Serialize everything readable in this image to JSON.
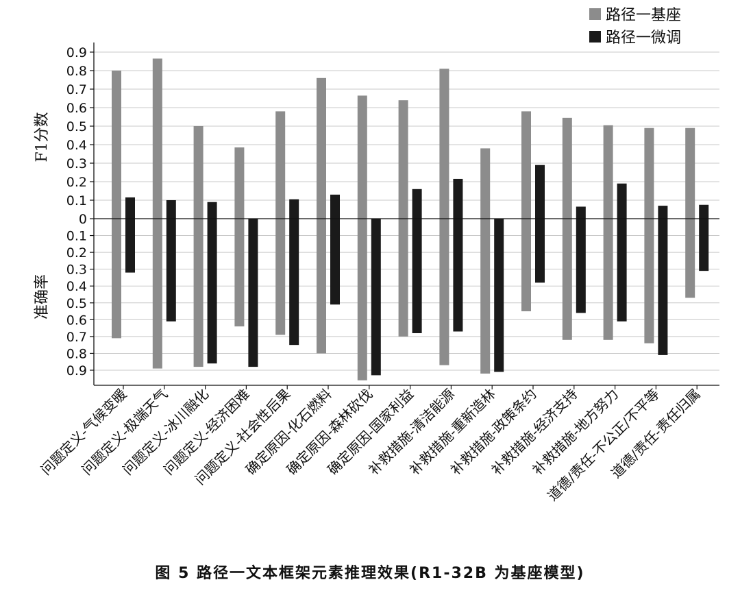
{
  "chart_data": {
    "type": "bar",
    "title": "",
    "caption": "图 5   路径一文本框架元素推理效果(R1-32B 为基座模型)",
    "ylabel_top": "F1分数",
    "ylabel_bottom": "准确率",
    "ylim_top": [
      0,
      0.9
    ],
    "ylim_bottom": [
      0,
      0.9
    ],
    "ticks": [
      "0.9",
      "0.8",
      "0.7",
      "0.6",
      "0.5",
      "0.4",
      "0.3",
      "0.2",
      "0.1",
      "0",
      "0.1",
      "0.2",
      "0.3",
      "0.4",
      "0.5",
      "0.6",
      "0.7",
      "0.8",
      "0.9"
    ],
    "grid": true,
    "legend_position": "top-right",
    "categories": [
      "问题定义-气候变暖",
      "问题定义-极端天气",
      "问题定义-冰川融化",
      "问题定义-经济困难",
      "问题定义-社会性后果",
      "确定原因-化石燃料",
      "确定原因-森林砍伐",
      "确定原因-国家利益",
      "补救措施-清洁能源",
      "补救措施-重新造林",
      "补救措施-政策条约",
      "补救措施-经济支持",
      "补救措施-地方努力",
      "道德/责任-不公正/不平等",
      "道德/责任-责任归属"
    ],
    "series": [
      {
        "name": "路径一基座",
        "color": "#8c8c8c",
        "f1": [
          0.8,
          0.865,
          0.5,
          0.385,
          0.58,
          0.76,
          0.665,
          0.64,
          0.81,
          0.38,
          0.58,
          0.545,
          0.505,
          0.49,
          0.49
        ],
        "accuracy": [
          0.71,
          0.89,
          0.88,
          0.64,
          0.69,
          0.8,
          0.96,
          0.7,
          0.87,
          0.92,
          0.55,
          0.72,
          0.72,
          0.74,
          0.47
        ]
      },
      {
        "name": "路径一微调",
        "color": "#1a1a1a",
        "f1": [
          0.115,
          0.1,
          0.09,
          0.0,
          0.105,
          0.13,
          0.0,
          0.16,
          0.215,
          0.0,
          0.29,
          0.065,
          0.19,
          0.07,
          0.075
        ],
        "accuracy": [
          0.32,
          0.61,
          0.86,
          0.88,
          0.75,
          0.51,
          0.93,
          0.68,
          0.67,
          0.91,
          0.38,
          0.56,
          0.61,
          0.81,
          0.31
        ]
      }
    ]
  }
}
